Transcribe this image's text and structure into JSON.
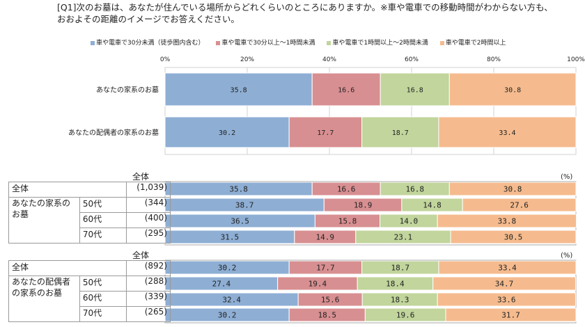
{
  "question": "[Q1]次のお墓は、あなたが住んでいる場所からどれくらいのところにありますか。※車や電車での移動時間がわからない方も、おおよその距離のイメージでお答えください。",
  "colors": {
    "c1": "#8eaed4",
    "c2": "#d88f91",
    "c3": "#c1d59c",
    "c4": "#f5bb8e"
  },
  "chart_data": [
    {
      "type": "bar",
      "stacked": true,
      "orientation": "horizontal",
      "title": "",
      "legend_position": "top",
      "series_names": [
        "車や電車で30分未満（徒歩圏内含む）",
        "車や電車で30分以上～1時間未満",
        "車や電車で1時間以上～2時間未満",
        "車や電車で2時間以上"
      ],
      "x_ticks": [
        "0%",
        "20%",
        "40%",
        "60%",
        "80%",
        "100%"
      ],
      "xlim": [
        0,
        100
      ],
      "categories": [
        "あなたの家系のお墓",
        "あなたの配偶者の家系のお墓"
      ],
      "values": [
        [
          35.8,
          16.6,
          16.8,
          30.8
        ],
        [
          30.2,
          17.7,
          18.7,
          33.4
        ]
      ]
    },
    {
      "type": "table",
      "section_title": "全体",
      "unit": "(%)",
      "group_label": "あなたの家系のお墓",
      "rows": [
        {
          "label": "全体",
          "n": "(1,039)",
          "values": [
            35.8,
            16.6,
            16.8,
            30.8
          ]
        },
        {
          "label": "50代",
          "n": "(344)",
          "values": [
            38.7,
            18.9,
            14.8,
            27.6
          ]
        },
        {
          "label": "60代",
          "n": "(400)",
          "values": [
            36.5,
            15.8,
            14.0,
            33.8
          ]
        },
        {
          "label": "70代",
          "n": "(295)",
          "values": [
            31.5,
            14.9,
            23.1,
            30.5
          ]
        }
      ]
    },
    {
      "type": "table",
      "section_title": "全体",
      "unit": "(%)",
      "group_label": "あなたの配偶者の家系のお墓",
      "rows": [
        {
          "label": "全体",
          "n": "(892)",
          "values": [
            30.2,
            17.7,
            18.7,
            33.4
          ]
        },
        {
          "label": "50代",
          "n": "(288)",
          "values": [
            27.4,
            19.4,
            18.4,
            34.7
          ]
        },
        {
          "label": "60代",
          "n": "(339)",
          "values": [
            32.4,
            15.6,
            18.3,
            33.6
          ]
        },
        {
          "label": "70代",
          "n": "(265)",
          "values": [
            30.2,
            18.5,
            19.6,
            31.7
          ]
        }
      ]
    }
  ]
}
